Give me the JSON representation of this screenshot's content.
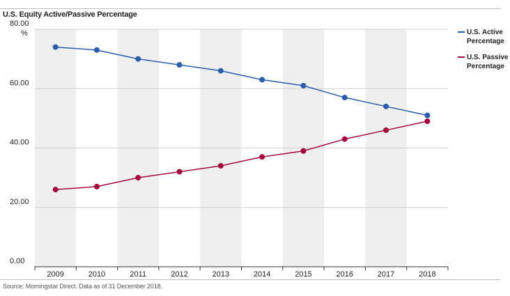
{
  "title": "U.S. Equity Active/Passive Percentage",
  "source": "Source: Morningstar Direct. Data as of 31 December 2018.",
  "y_unit": "%",
  "chart_data": {
    "type": "line",
    "title": "U.S. Equity Active/Passive Percentage",
    "x": [
      "2009",
      "2010",
      "2011",
      "2012",
      "2013",
      "2014",
      "2015",
      "2016",
      "2017",
      "2018"
    ],
    "y_ticks": [
      "0.00",
      "20.00",
      "40.00",
      "60.00",
      "80.00"
    ],
    "ylim": [
      0,
      80
    ],
    "grid": "horizontal",
    "alternating_column_shading": true,
    "legend_position": "right",
    "series": [
      {
        "name_lines": [
          "U.S. Active",
          "Percentage"
        ],
        "color": "#2a5caa",
        "values": [
          74.0,
          73.0,
          70.0,
          68.0,
          66.0,
          63.0,
          61.0,
          57.0,
          54.0,
          51.0
        ]
      },
      {
        "name_lines": [
          "U.S. Passive",
          "Percentage"
        ],
        "color": "#a5093a",
        "values": [
          26.0,
          27.0,
          30.0,
          32.0,
          34.0,
          37.0,
          39.0,
          43.0,
          46.0,
          49.0
        ]
      }
    ]
  }
}
